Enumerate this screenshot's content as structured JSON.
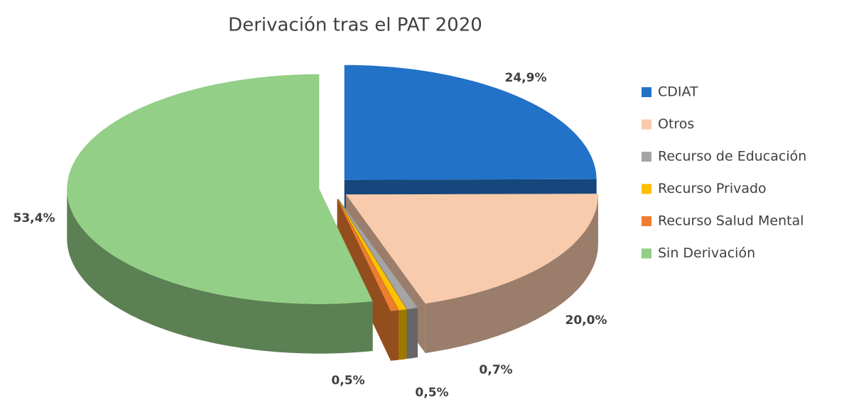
{
  "chart_data": {
    "type": "pie",
    "title": "Derivación tras el PAT 2020",
    "categories": [
      "CDIAT",
      "Otros",
      "Recurso de Educación",
      "Recurso Privado",
      "Recurso Salud Mental",
      "Sin Derivación"
    ],
    "values": [
      24.9,
      20.0,
      0.7,
      0.5,
      0.5,
      53.4
    ],
    "value_labels": [
      "24,9%",
      "20,0%",
      "0,7%",
      "0,5%",
      "0,5%",
      "53,4%"
    ],
    "colors": [
      "#2272c8",
      "#f8cbad",
      "#a5a5a5",
      "#ffc000",
      "#ed7d31",
      "#93cf86"
    ],
    "legend": "right"
  }
}
